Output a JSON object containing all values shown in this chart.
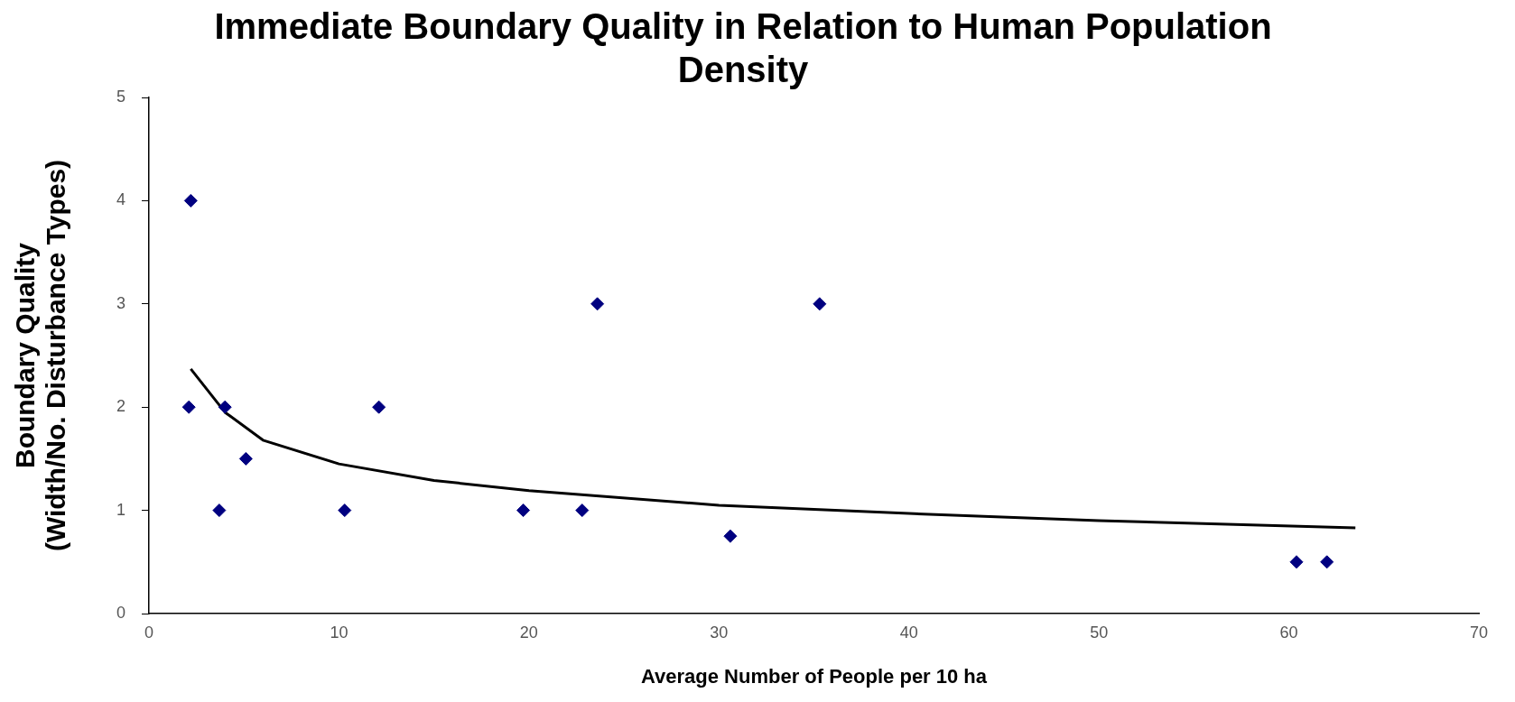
{
  "chart_data": {
    "type": "scatter",
    "title": "Immediate Boundary Quality in Relation to Human Population Density",
    "xlabel": "Average Number of People per 10 ha",
    "ylabel": "Boundary Quality (Width/No. Disturbance Types)",
    "series": [
      {
        "color": "#000080",
        "marker": "diamond",
        "x": [
          2.2,
          2.1,
          3.7,
          4.0,
          5.1,
          10.3,
          12.1,
          19.7,
          22.8,
          23.6,
          30.6,
          35.3,
          60.4,
          62.0
        ],
        "values": [
          4,
          2,
          1,
          2,
          1.5,
          1,
          2,
          1,
          1,
          3,
          0.75,
          3,
          0.5,
          0.5
        ]
      },
      {
        "type": "line",
        "color": "#000000",
        "marker": "none",
        "x": [
          2.2,
          4,
          6,
          10,
          15,
          20,
          30,
          40,
          50,
          63.5
        ],
        "values": [
          2.37,
          1.95,
          1.68,
          1.45,
          1.29,
          1.19,
          1.05,
          0.97,
          0.9,
          0.83
        ]
      }
    ],
    "xlim": [
      0,
      70
    ],
    "xticks": [
      0,
      10,
      20,
      30,
      40,
      50,
      60,
      70
    ],
    "ylim": [
      0,
      5
    ],
    "yticks": [
      0,
      1,
      2,
      3,
      4,
      5
    ],
    "grid": false,
    "legend": false
  }
}
